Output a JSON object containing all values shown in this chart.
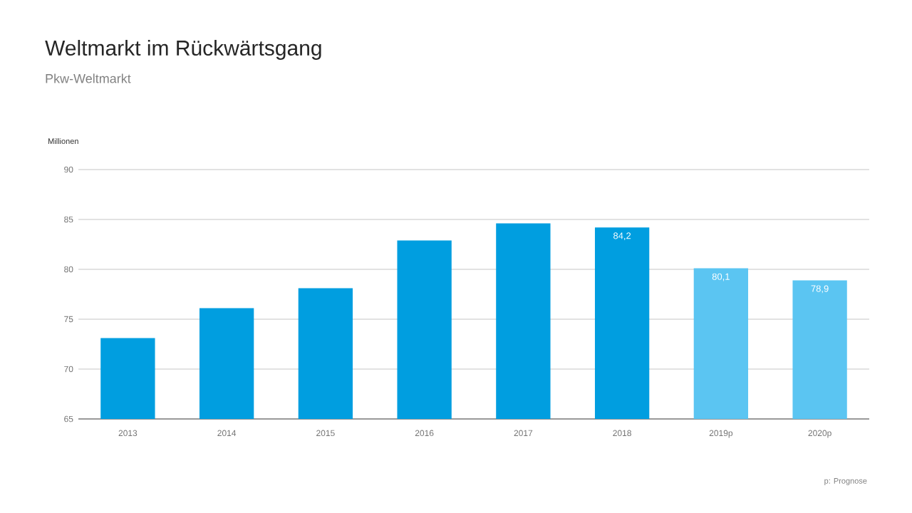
{
  "chart_data": {
    "type": "bar",
    "title": "Weltmarkt im Rückwärtsgang",
    "subtitle": "Pkw-Weltmarkt",
    "ylabel": "Millionen",
    "categories": [
      "2013",
      "2014",
      "2015",
      "2016",
      "2017",
      "2018",
      "2019p",
      "2020p"
    ],
    "values": [
      73.1,
      76.1,
      78.1,
      82.9,
      84.6,
      84.2,
      80.1,
      78.9
    ],
    "colors": [
      "#009ee0",
      "#009ee0",
      "#009ee0",
      "#009ee0",
      "#009ee0",
      "#009ee0",
      "#5bc5f2",
      "#5bc5f2"
    ],
    "value_labels": [
      null,
      null,
      null,
      null,
      null,
      "84,2",
      "80,1",
      "78,9"
    ],
    "ylim": [
      65,
      90
    ],
    "yticks": [
      65,
      70,
      75,
      80,
      85,
      90
    ],
    "grid": "y",
    "annotations": [
      "p: Prognose"
    ]
  }
}
